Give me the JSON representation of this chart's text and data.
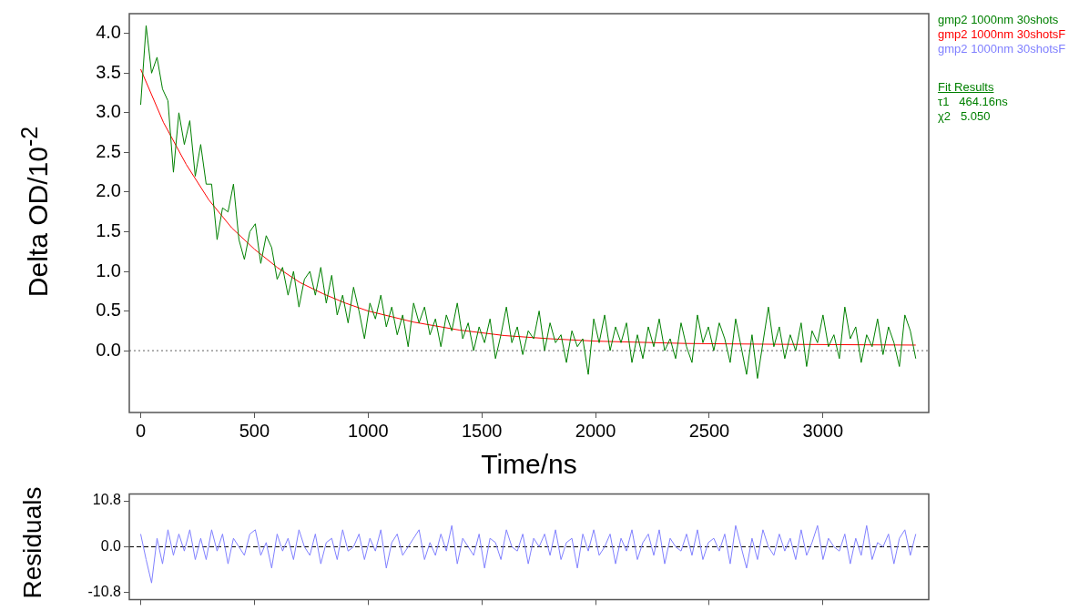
{
  "chart_data": [
    {
      "type": "line",
      "xlabel": "Time/ns",
      "ylabel": "Delta OD/10$^{-2}$",
      "x": [
        0,
        24,
        48,
        72,
        96,
        120,
        144,
        168,
        192,
        216,
        240,
        264,
        288,
        312,
        336,
        360,
        384,
        408,
        432,
        456,
        480,
        504,
        528,
        552,
        576,
        600,
        624,
        648,
        672,
        696,
        720,
        744,
        768,
        792,
        816,
        840,
        864,
        888,
        912,
        936,
        960,
        984,
        1008,
        1032,
        1056,
        1080,
        1104,
        1128,
        1152,
        1176,
        1200,
        1224,
        1248,
        1272,
        1296,
        1320,
        1344,
        1368,
        1392,
        1416,
        1440,
        1464,
        1488,
        1512,
        1536,
        1560,
        1584,
        1608,
        1632,
        1656,
        1680,
        1704,
        1728,
        1752,
        1776,
        1800,
        1824,
        1848,
        1872,
        1896,
        1920,
        1944,
        1968,
        1992,
        2016,
        2040,
        2064,
        2088,
        2112,
        2136,
        2160,
        2184,
        2208,
        2232,
        2256,
        2280,
        2304,
        2328,
        2352,
        2376,
        2400,
        2424,
        2448,
        2472,
        2496,
        2520,
        2544,
        2568,
        2592,
        2616,
        2640,
        2664,
        2688,
        2712,
        2736,
        2760,
        2784,
        2808,
        2832,
        2856,
        2880,
        2904,
        2928,
        2952,
        2976,
        3000,
        3024,
        3048,
        3072,
        3096,
        3120,
        3144,
        3168,
        3192,
        3216,
        3240,
        3264,
        3288,
        3312,
        3336,
        3360,
        3384,
        3408
      ],
      "series": [
        {
          "name": "gmp2 1000nm 30shots",
          "color": "#008000",
          "values": [
            3.1,
            4.1,
            3.5,
            3.7,
            3.3,
            3.15,
            2.25,
            3.0,
            2.6,
            2.9,
            2.2,
            2.6,
            2.1,
            2.1,
            1.4,
            1.8,
            1.75,
            2.1,
            1.4,
            1.15,
            1.5,
            1.6,
            1.1,
            1.45,
            1.3,
            0.9,
            1.05,
            0.7,
            1.0,
            0.55,
            0.9,
            1.0,
            0.7,
            1.05,
            0.6,
            0.95,
            0.45,
            0.7,
            0.35,
            0.8,
            0.5,
            0.15,
            0.6,
            0.4,
            0.7,
            0.3,
            0.55,
            0.2,
            0.45,
            0.05,
            0.6,
            0.35,
            0.55,
            0.2,
            0.4,
            0.05,
            0.45,
            0.25,
            0.6,
            0.15,
            0.35,
            0.0,
            0.3,
            0.1,
            0.4,
            -0.1,
            0.2,
            0.55,
            0.1,
            0.3,
            -0.05,
            0.25,
            0.15,
            0.5,
            0.0,
            0.35,
            0.1,
            0.2,
            -0.15,
            0.25,
            0.05,
            0.15,
            -0.3,
            0.4,
            0.1,
            0.45,
            0.0,
            0.3,
            0.1,
            0.35,
            -0.15,
            0.2,
            -0.1,
            0.3,
            0.05,
            0.4,
            0.0,
            0.15,
            -0.1,
            0.35,
            0.05,
            -0.15,
            0.45,
            0.1,
            0.3,
            0.0,
            0.35,
            0.15,
            -0.15,
            0.4,
            0.05,
            -0.3,
            0.2,
            -0.35,
            0.1,
            0.55,
            0.05,
            0.3,
            -0.1,
            0.2,
            0.0,
            0.35,
            -0.2,
            0.25,
            0.1,
            0.45,
            0.05,
            0.2,
            -0.1,
            0.55,
            0.15,
            0.3,
            -0.15,
            0.2,
            0.05,
            0.4,
            -0.05,
            0.3,
            0.1,
            -0.2,
            0.45,
            0.25,
            -0.1
          ]
        },
        {
          "name": "gmp2 1000nm 30shotsF",
          "color": "#ff0000",
          "x": [
            0,
            100,
            200,
            300,
            400,
            500,
            600,
            700,
            800,
            900,
            1000,
            1200,
            1400,
            1600,
            1800,
            2000,
            2400,
            2800,
            3408
          ],
          "values": [
            3.55,
            2.88,
            2.35,
            1.9,
            1.55,
            1.28,
            1.05,
            0.86,
            0.72,
            0.6,
            0.5,
            0.36,
            0.26,
            0.19,
            0.15,
            0.12,
            0.09,
            0.08,
            0.07
          ]
        }
      ],
      "xlim": [
        -50,
        3465
      ],
      "xticks": [
        0,
        500,
        1000,
        1500,
        2000,
        2500,
        3000
      ],
      "ylim": [
        -0.78,
        4.25
      ],
      "yticks": [
        {
          "value": 0,
          "label": "0.0"
        },
        0.5,
        {
          "value": 1,
          "label": "1.0"
        },
        1.5,
        {
          "value": 2,
          "label": "2.0"
        },
        2.5,
        {
          "value": 3,
          "label": "3.0"
        },
        3.5,
        {
          "value": 4,
          "label": "4.0"
        }
      ],
      "ref_lines": [
        {
          "axis": "y",
          "value": 0,
          "line_style": "dotted",
          "color": "#606060"
        }
      ],
      "grid": false,
      "legend": "top right",
      "annotations": [
        "Fit Results",
        "τ1   464.16ns",
        "χ2   5.050"
      ]
    },
    {
      "type": "line",
      "ylabel": "Residuals",
      "x": [
        0,
        24,
        48,
        72,
        96,
        120,
        144,
        168,
        192,
        216,
        240,
        264,
        288,
        312,
        336,
        360,
        384,
        408,
        432,
        456,
        480,
        504,
        528,
        552,
        576,
        600,
        624,
        648,
        672,
        696,
        720,
        744,
        768,
        792,
        816,
        840,
        864,
        888,
        912,
        936,
        960,
        984,
        1008,
        1032,
        1056,
        1080,
        1104,
        1128,
        1152,
        1176,
        1200,
        1224,
        1248,
        1272,
        1296,
        1320,
        1344,
        1368,
        1392,
        1416,
        1440,
        1464,
        1488,
        1512,
        1536,
        1560,
        1584,
        1608,
        1632,
        1656,
        1680,
        1704,
        1728,
        1752,
        1776,
        1800,
        1824,
        1848,
        1872,
        1896,
        1920,
        1944,
        1968,
        1992,
        2016,
        2040,
        2064,
        2088,
        2112,
        2136,
        2160,
        2184,
        2208,
        2232,
        2256,
        2280,
        2304,
        2328,
        2352,
        2376,
        2400,
        2424,
        2448,
        2472,
        2496,
        2520,
        2544,
        2568,
        2592,
        2616,
        2640,
        2664,
        2688,
        2712,
        2736,
        2760,
        2784,
        2808,
        2832,
        2856,
        2880,
        2904,
        2928,
        2952,
        2976,
        3000,
        3024,
        3048,
        3072,
        3096,
        3120,
        3144,
        3168,
        3192,
        3216,
        3240,
        3264,
        3288,
        3312,
        3336,
        3360,
        3384,
        3408
      ],
      "series": [
        {
          "name": "gmp2 1000nm 30shotsF",
          "color": "#8080ff",
          "values": [
            3,
            -3,
            -8.5,
            2,
            -4,
            4,
            -2,
            3,
            -1,
            4,
            -3,
            2,
            -3,
            4,
            -1,
            3,
            -4,
            2,
            0,
            -2,
            3,
            4,
            -2,
            1,
            -5,
            3,
            -1,
            2,
            -3,
            4,
            0,
            -2,
            3,
            -4,
            1,
            2,
            -3,
            4,
            -1,
            0,
            3,
            -3,
            2,
            -1,
            4,
            -5,
            1,
            3,
            -2,
            0,
            2,
            4,
            -3,
            1,
            -2,
            3,
            -1,
            5,
            -4,
            2,
            0,
            -2,
            3,
            -5,
            2,
            1,
            -3,
            4,
            0,
            -1,
            3,
            -4,
            2,
            0,
            3,
            -2,
            4,
            -3,
            1,
            2,
            -5,
            3,
            -1,
            4,
            -2,
            0,
            3,
            -4,
            2,
            -1,
            4,
            -3,
            1,
            3,
            -2,
            4,
            -4,
            2,
            0,
            -1,
            3,
            -2,
            4,
            -3,
            1,
            2,
            -1,
            3,
            -4,
            5,
            0,
            -5,
            2,
            -3,
            4,
            0,
            -2,
            3,
            -1,
            2,
            -3,
            4,
            -2,
            1,
            5,
            -3,
            2,
            0,
            -1,
            3,
            -4,
            2,
            -2,
            5,
            -3,
            1,
            0,
            3,
            -4,
            2,
            4,
            -2,
            3
          ]
        }
      ],
      "xlim": [
        -50,
        3465
      ],
      "xticks": [
        0,
        500,
        1000,
        1500,
        2000,
        2500,
        3000
      ],
      "ylim": [
        -12.4,
        12.4
      ],
      "yticks": [
        10.8,
        {
          "value": 0,
          "label": "0.0"
        },
        -10.8
      ],
      "ref_lines": [
        {
          "axis": "y",
          "value": 0,
          "line_style": "dashed",
          "color": "#000000"
        }
      ],
      "grid": false,
      "tick_labels": "y",
      "legend": "top right"
    }
  ]
}
